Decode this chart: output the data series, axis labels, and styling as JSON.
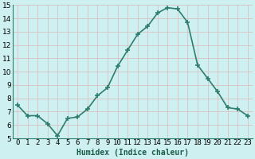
{
  "x": [
    0,
    1,
    2,
    3,
    4,
    5,
    6,
    7,
    8,
    9,
    10,
    11,
    12,
    13,
    14,
    15,
    16,
    17,
    18,
    19,
    20,
    21,
    22,
    23
  ],
  "y": [
    7.5,
    6.7,
    6.7,
    6.1,
    5.2,
    6.5,
    6.6,
    7.2,
    8.2,
    8.8,
    10.4,
    11.6,
    12.8,
    13.4,
    14.4,
    14.8,
    14.7,
    13.7,
    10.5,
    9.5,
    8.5,
    7.3,
    7.2,
    6.7
  ],
  "line_color": "#2e7d6e",
  "marker": "+",
  "marker_size": 4,
  "marker_edge_width": 1.2,
  "line_width": 1.2,
  "bg_color": "#cff0f0",
  "grid_color_major": "#d9b8b8",
  "grid_color_minor": "#d9b8b8",
  "xlabel": "Humidex (Indice chaleur)",
  "xlim": [
    -0.5,
    23.5
  ],
  "ylim": [
    5,
    15
  ],
  "yticks": [
    5,
    6,
    7,
    8,
    9,
    10,
    11,
    12,
    13,
    14,
    15
  ],
  "xtick_labels": [
    "0",
    "1",
    "2",
    "3",
    "4",
    "5",
    "6",
    "7",
    "8",
    "9",
    "10",
    "11",
    "12",
    "13",
    "14",
    "15",
    "16",
    "17",
    "18",
    "19",
    "20",
    "21",
    "22",
    "23"
  ],
  "xlabel_color": "#1a5c4c",
  "xlabel_fontsize": 7,
  "tick_fontsize": 6.5
}
